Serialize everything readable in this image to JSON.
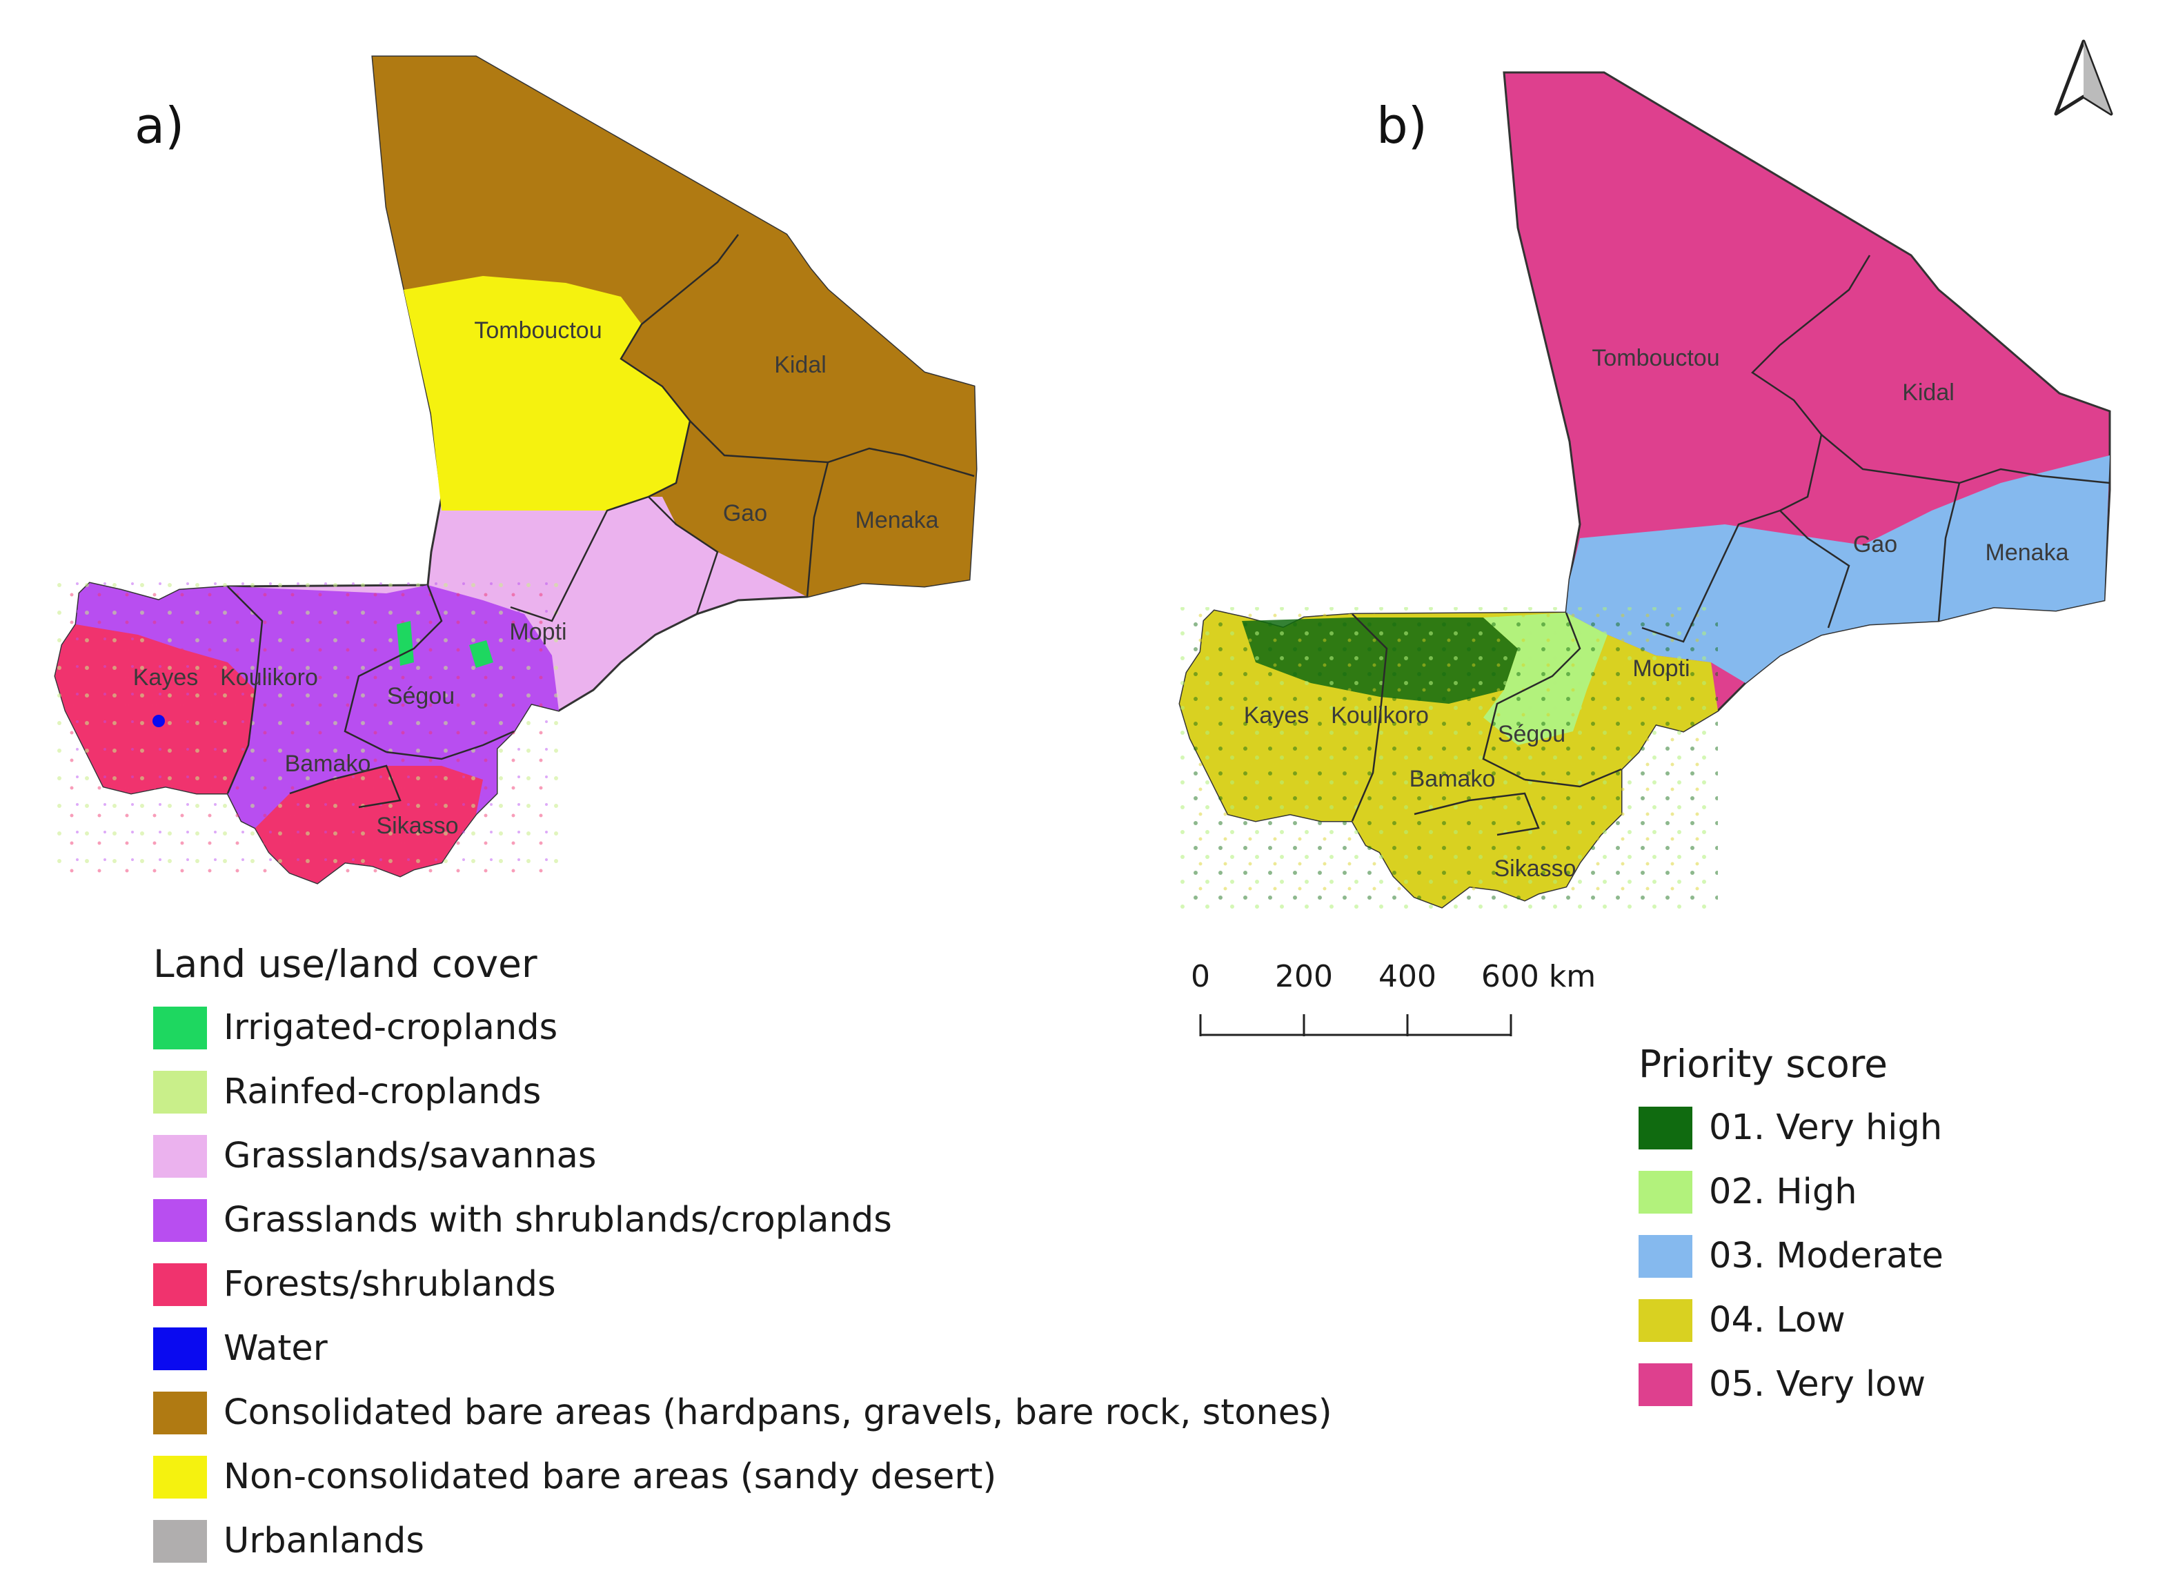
{
  "panels": [
    {
      "label": "a)",
      "regions": [
        "Tombouctou",
        "Kidal",
        "Gao",
        "Menaka",
        "Mopti",
        "Kayes",
        "Koulikoro",
        "Ségou",
        "Bamako",
        "Sikasso"
      ]
    },
    {
      "label": "b)",
      "regions": [
        "Tombouctou",
        "Kidal",
        "Gao",
        "Menaka",
        "Mopti",
        "Kayes",
        "Koulikoro",
        "Ségou",
        "Bamako",
        "Sikasso"
      ]
    }
  ],
  "legend_lulc": {
    "title": "Land use/land cover",
    "items": [
      {
        "label": "Irrigated-croplands",
        "color": "#1ed760"
      },
      {
        "label": "Rainfed-croplands",
        "color": "#c9ef8a"
      },
      {
        "label": "Grasslands/savannas",
        "color": "#ebb2ee"
      },
      {
        "label": "Grasslands with shrublands/croplands",
        "color": "#b84ef0"
      },
      {
        "label": "Forests/shrublands",
        "color": "#f0336e"
      },
      {
        "label": "Water",
        "color": "#0a0af0"
      },
      {
        "label": "Consolidated bare areas (hardpans, gravels, bare rock, stones)",
        "color": "#b07a12"
      },
      {
        "label": "Non-consolidated bare areas (sandy desert)",
        "color": "#f5f20f"
      },
      {
        "label": "Urbanlands",
        "color": "#b0aeae"
      }
    ]
  },
  "legend_priority": {
    "title": "Priority score",
    "items": [
      {
        "label": "01. Very high",
        "color": "#106b10"
      },
      {
        "label": "02. High",
        "color": "#b2f27c"
      },
      {
        "label": "03. Moderate",
        "color": "#85b9ee"
      },
      {
        "label": "04. Low",
        "color": "#d9d121"
      },
      {
        "label": "05. Very low",
        "color": "#de408e"
      }
    ]
  },
  "scale_bar": {
    "ticks": [
      "0",
      "200",
      "400",
      "600 km"
    ]
  },
  "north_arrow": {
    "icon": "north-arrow-icon"
  }
}
